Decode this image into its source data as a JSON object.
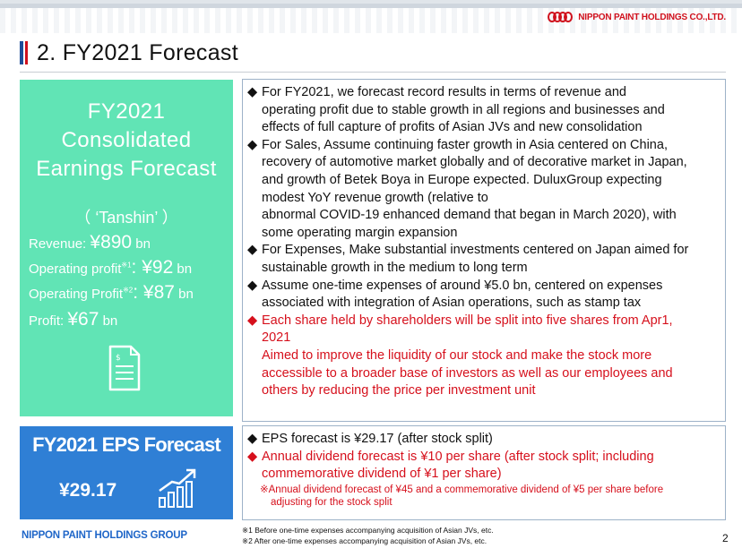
{
  "header": {
    "company_logo_text": "NIPPON PAINT HOLDINGS CO.,LTD.",
    "title": "2. FY2021 Forecast"
  },
  "left_panel": {
    "title_lines": [
      "FY2021",
      "Consolidated",
      "Earnings Forecast"
    ],
    "tanshin": "（ ‘Tanshin’ ）",
    "items": [
      {
        "label": "Revenue: ",
        "note": "",
        "value": "¥890",
        "unit": " bn"
      },
      {
        "label": "Operating profit",
        "note": "※1",
        "value": ": ¥92",
        "unit": " bn"
      },
      {
        "label": "Operating Profit",
        "note": "※2",
        "value": ": ¥87",
        "unit": " bn"
      },
      {
        "label": "Profit: ",
        "note": "",
        "value": "¥67",
        "unit": " bn"
      }
    ],
    "icon": "document-icon"
  },
  "eps_panel": {
    "title": "FY2021 EPS Forecast",
    "value": "¥29.17",
    "icon": "bar-chart-growth-icon"
  },
  "forecast_bullets": [
    {
      "mark": "◆",
      "color": "black",
      "lines": [
        "For FY2021, we forecast record results in terms of revenue and",
        "operating profit due to stable growth in all regions and businesses and",
        "effects of full capture of profits of Asian JVs and new consolidation"
      ]
    },
    {
      "mark": "◆",
      "color": "black",
      "lines": [
        "For Sales, Assume continuing faster growth in Asia centered on China,",
        "recovery of automotive market globally and of decorative market in Japan,",
        "and growth of Betek Boya in Europe expected. DuluxGroup expecting",
        "modest YoY revenue growth (relative to",
        "abnormal COVID-19 enhanced demand that began in March  2020), with",
        "some operating margin expansion"
      ]
    },
    {
      "mark": "◆",
      "color": "black",
      "lines": [
        "For Expenses, Make substantial investments centered on Japan aimed for",
        "sustainable growth in the medium to long term"
      ]
    },
    {
      "mark": "◆",
      "color": "black",
      "lines": [
        "Assume one-time expenses of around ¥5.0 bn, centered on expenses",
        "associated with integration of Asian operations, such as stamp tax"
      ]
    },
    {
      "mark": "◆",
      "color": "red",
      "lines": [
        "Each share held by shareholders will be split into five shares from Apr1,",
        "2021",
        "Aimed to improve the liquidity of our stock and make the stock more",
        "accessible to a broader base of  investors as well as our employees and",
        "others by reducing the price per investment unit"
      ]
    }
  ],
  "eps_bullets": [
    {
      "mark": "◆",
      "color": "black",
      "lines": [
        "EPS forecast is ¥29.17 (after stock split)"
      ]
    },
    {
      "mark": "◆",
      "color": "red",
      "lines": [
        "Annual dividend forecast is ¥10 per share (after stock split; including",
        "commemorative dividend of ¥1 per share)"
      ]
    }
  ],
  "eps_note": [
    "※Annual dividend forecast of ¥45 and a commemorative dividend of ¥5 per share before",
    "adjusting for the stock split"
  ],
  "footer": {
    "group_logo": "NIPPON PAINT HOLDINGS GROUP",
    "notes": [
      "※1  Before one-time expenses accompanying acquisition of Asian JVs, etc.",
      "※2  After one-time expenses accompanying acquisition of Asian JVs, etc."
    ],
    "page_number": "2"
  },
  "colors": {
    "green_panel": "#61e4b5",
    "blue_panel": "#2f7fd5",
    "accent_red": "#d6101c",
    "brand_blue": "#1f66c8"
  }
}
